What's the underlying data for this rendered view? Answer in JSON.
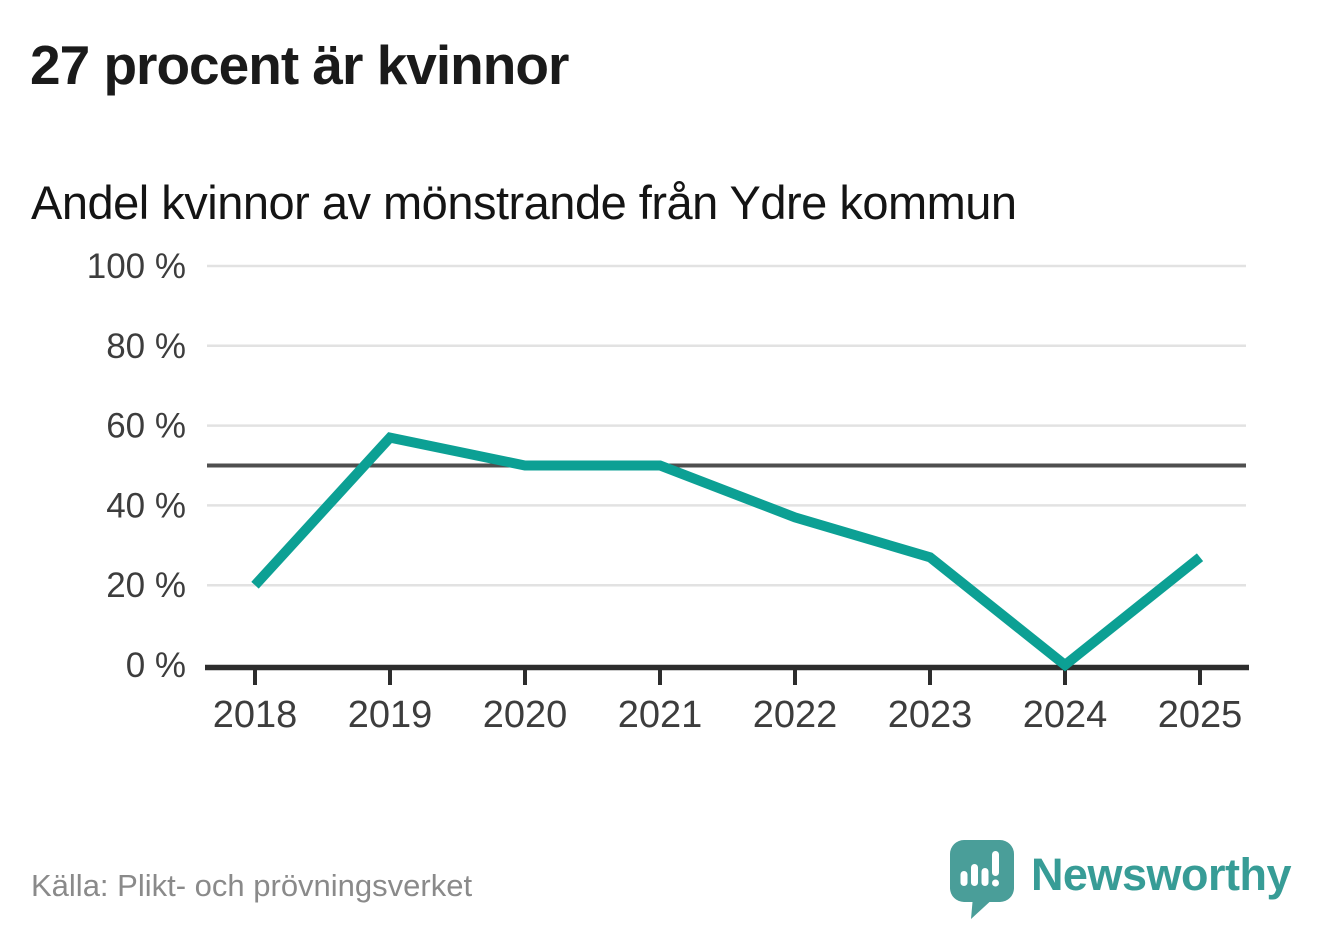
{
  "header": {
    "title": "27 procent är kvinnor",
    "subtitle": "Andel kvinnor av mönstrande från Ydre kommun"
  },
  "chart_data": {
    "type": "line",
    "title": "Andel kvinnor av mönstrande från Ydre kommun",
    "x": [
      "2018",
      "2019",
      "2020",
      "2021",
      "2022",
      "2023",
      "2024",
      "2025"
    ],
    "values": [
      20,
      57,
      50,
      50,
      37,
      27,
      0,
      27
    ],
    "unit": "%",
    "xlabel": "",
    "ylabel": "",
    "ylim": [
      0,
      100
    ],
    "yticks": [
      0,
      20,
      40,
      60,
      80,
      100
    ],
    "ytick_labels": [
      "0 %",
      "20 %",
      "40 %",
      "60 %",
      "80 %",
      "100 %"
    ],
    "reference_line": 50,
    "grid": true,
    "legend_position": "none"
  },
  "footer": {
    "source": "Källa: Plikt- och prövningsverket",
    "brand": "Newsworthy"
  },
  "colors": {
    "line": "#0ca094",
    "grid": "#e2e2e2",
    "reference": "#4f4f4f",
    "axis": "#2d2d2d",
    "axis_labels": "#3d3d3d",
    "title": "#1a1a1a",
    "subtitle": "#141414",
    "source": "#8a8a8a",
    "logo": "#4a9e99",
    "brand_text": "#379c96"
  }
}
